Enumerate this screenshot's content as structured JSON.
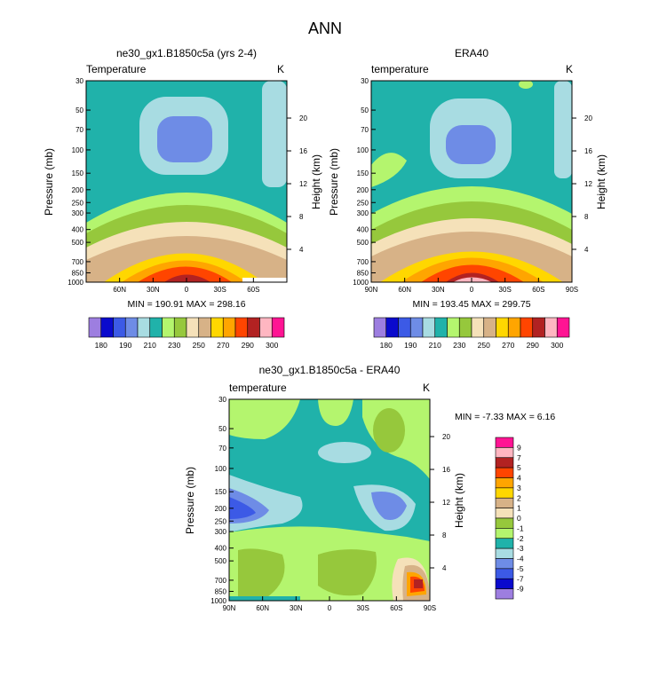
{
  "figure_title": "ANN",
  "chart_data": [
    {
      "type": "contour",
      "title": "ne30_gx1.B1850c5a (yrs 2-4)",
      "left_label": "Temperature",
      "right_label": "K",
      "ylabel": "Pressure (mb)",
      "ylabel_right": "Height (km)",
      "yticks_pressure": [
        "30",
        "50",
        "70",
        "100",
        "150",
        "200",
        "250",
        "300",
        "400",
        "500",
        "700",
        "850",
        "1000"
      ],
      "yticks_height": [
        "20",
        "16",
        "12",
        "8",
        "4"
      ],
      "xticks": [
        "60N",
        "30N",
        "0",
        "30S",
        "60S"
      ],
      "stats": "MIN = 190.91  MAX = 298.16",
      "colorbar_labels": [
        "180",
        "190",
        "210",
        "230",
        "250",
        "270",
        "290",
        "300"
      ]
    },
    {
      "type": "contour",
      "title": "ERA40",
      "left_label": "temperature",
      "right_label": "K",
      "ylabel": "Pressure (mb)",
      "ylabel_right": "Height (km)",
      "yticks_pressure": [
        "30",
        "50",
        "70",
        "100",
        "150",
        "200",
        "250",
        "300",
        "400",
        "500",
        "700",
        "850",
        "1000"
      ],
      "yticks_height": [
        "20",
        "16",
        "12",
        "8",
        "4"
      ],
      "xticks": [
        "90N",
        "60N",
        "30N",
        "0",
        "30S",
        "60S",
        "90S"
      ],
      "stats": "MIN = 193.45  MAX = 299.75",
      "colorbar_labels": [
        "180",
        "190",
        "210",
        "230",
        "250",
        "270",
        "290",
        "300"
      ]
    },
    {
      "type": "contour",
      "title": "ne30_gx1.B1850c5a - ERA40",
      "left_label": "temperature",
      "right_label": "K",
      "ylabel": "Pressure (mb)",
      "ylabel_right": "Height (km)",
      "yticks_pressure": [
        "30",
        "50",
        "70",
        "100",
        "150",
        "200",
        "250",
        "300",
        "400",
        "500",
        "700",
        "850",
        "1000"
      ],
      "yticks_height": [
        "20",
        "16",
        "12",
        "8",
        "4"
      ],
      "xticks": [
        "90N",
        "60N",
        "30N",
        "0",
        "30S",
        "60S",
        "90S"
      ],
      "stats": "MIN = -7.33  MAX =  6.16",
      "colorbar_labels": [
        "9",
        "7",
        "5",
        "4",
        "3",
        "2",
        "1",
        "0",
        "-1",
        "-2",
        "-3",
        "-4",
        "-5",
        "-7",
        "-9"
      ]
    }
  ],
  "colors": {
    "abs_levels": [
      "#9d7ee0",
      "#0a0acd",
      "#3c5ae6",
      "#6e8ce6",
      "#a8dce2",
      "#20b2aa",
      "#b4f56e",
      "#96c83c",
      "#f5e1b9",
      "#d7b287",
      "#ffd700",
      "#ffa500",
      "#ff4500",
      "#b22222",
      "#ffb6c1",
      "#ff1493"
    ],
    "diff_levels": [
      "#9d7ee0",
      "#0a0acd",
      "#3c5ae6",
      "#6e8ce6",
      "#a8dce2",
      "#20b2aa",
      "#b4f56e",
      "#96c83c",
      "#f5e1b9",
      "#d7b287",
      "#ffd700",
      "#ffa500",
      "#ff4500",
      "#b22222",
      "#ffb6c1",
      "#ff1493"
    ]
  }
}
